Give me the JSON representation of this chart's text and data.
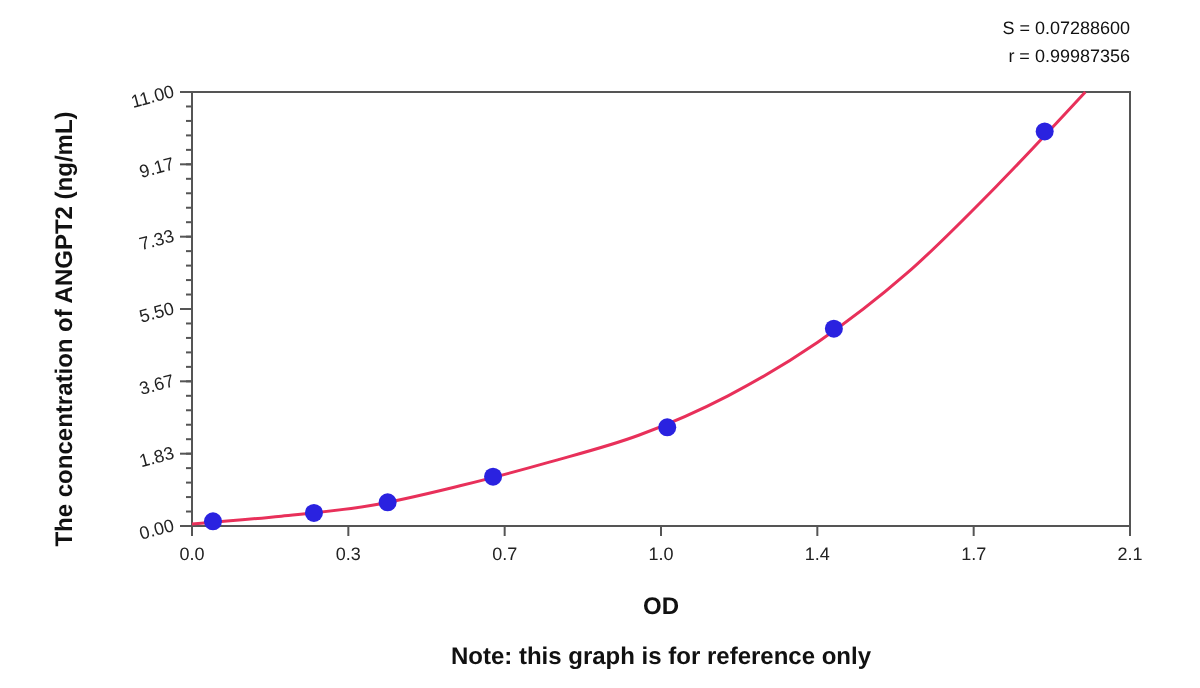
{
  "chart_data": {
    "type": "scatter",
    "xlabel": "OD",
    "ylabel": "The concentration of ANGPT2 (ng/mL)",
    "annotations": [
      "S = 0.07288600",
      "r = 0.99987356",
      "Note: this graph is for reference only"
    ],
    "xlim": [
      0,
      2.1
    ],
    "xticks": [
      {
        "value": 0,
        "label": "0.0"
      },
      {
        "value": 0.35,
        "label": "0.3"
      },
      0.7,
      {
        "value": 1.05,
        "label": "1.0"
      },
      1.4,
      {
        "value": 1.75,
        "label": "1.7"
      },
      2.1
    ],
    "ylim": [
      0,
      11
    ],
    "yticks": [
      {
        "value": 0,
        "label": "0.00"
      },
      {
        "value": 1.833,
        "label": "1.83"
      },
      {
        "value": 3.667,
        "label": "3.67"
      },
      {
        "value": 5.5,
        "label": "5.50"
      },
      {
        "value": 7.333,
        "label": "7.33"
      },
      {
        "value": 9.167,
        "label": "9.17"
      },
      {
        "value": 11,
        "label": "11.00"
      }
    ],
    "grid": false,
    "series": [
      {
        "type": "line",
        "color": "#e8305a",
        "marker": "none",
        "x": [
          0,
          0.2,
          0.4,
          0.6,
          0.8,
          1.0,
          1.2,
          1.4,
          1.6,
          1.8,
          2.0
        ],
        "values": [
          0.05,
          0.25,
          0.52,
          1.02,
          1.62,
          2.3,
          3.3,
          4.65,
          6.4,
          8.6,
          11.0
        ]
      },
      {
        "color": "#2a22e0",
        "marker": "circle",
        "x": [
          0.047,
          0.273,
          0.438,
          0.674,
          1.064,
          1.437,
          1.909
        ],
        "values": [
          0.12,
          0.33,
          0.6,
          1.25,
          2.5,
          5.0,
          10.0
        ]
      }
    ]
  }
}
